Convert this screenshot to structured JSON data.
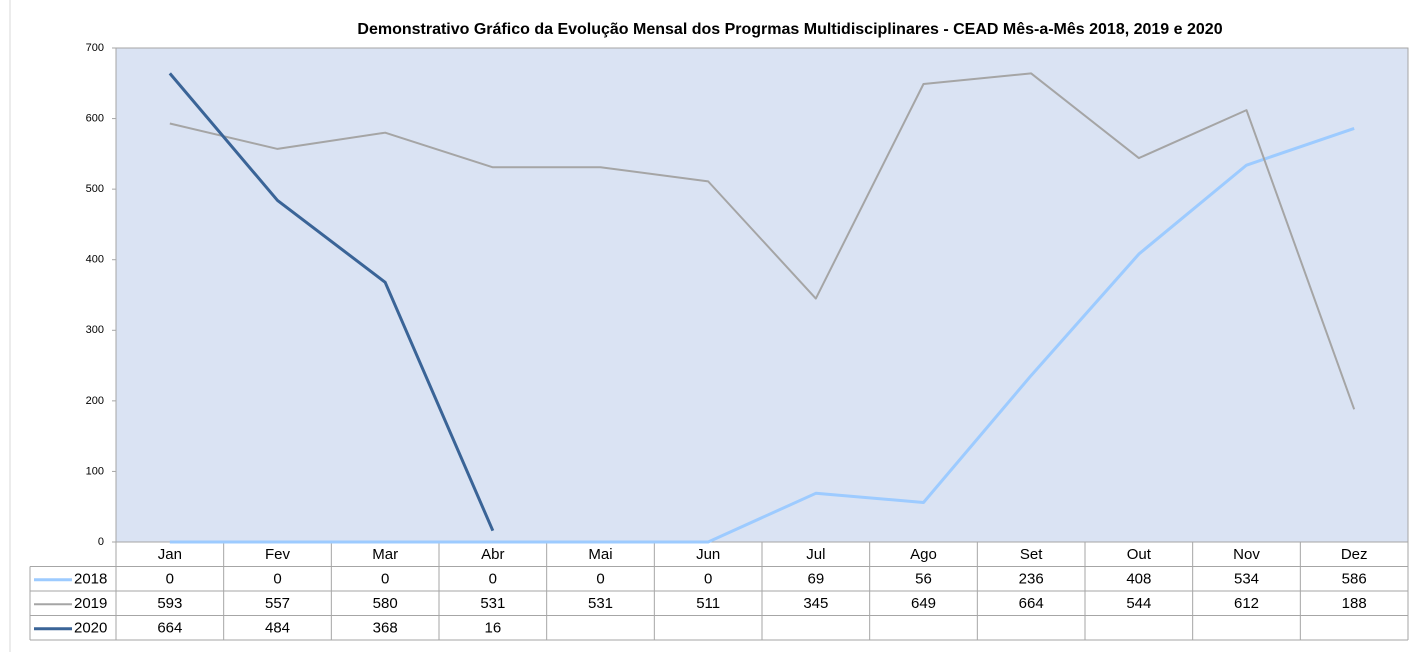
{
  "chart_data": {
    "type": "line",
    "title": "Demonstrativo Gráfico da Evolução Mensal dos Progrmas Multidisciplinares - CEAD Mês-a-Mês 2018, 2019 e 2020",
    "categories": [
      "Jan",
      "Fev",
      "Mar",
      "Abr",
      "Mai",
      "Jun",
      "Jul",
      "Ago",
      "Set",
      "Out",
      "Nov",
      "Dez"
    ],
    "series": [
      {
        "name": "2018",
        "color": "#9dcbff",
        "values": [
          0,
          0,
          0,
          0,
          0,
          0,
          69,
          56,
          236,
          408,
          534,
          586
        ]
      },
      {
        "name": "2019",
        "color": "#a5a5a5",
        "values": [
          593,
          557,
          580,
          531,
          531,
          511,
          345,
          649,
          664,
          544,
          612,
          188
        ]
      },
      {
        "name": "2020",
        "color": "#3a6497",
        "values": [
          664,
          484,
          368,
          16,
          null,
          null,
          null,
          null,
          null,
          null,
          null,
          null
        ]
      }
    ],
    "ylim": [
      0,
      700
    ],
    "yticks": [
      0,
      100,
      200,
      300,
      400,
      500,
      600,
      700
    ],
    "grid": false,
    "legend": "data-table"
  }
}
